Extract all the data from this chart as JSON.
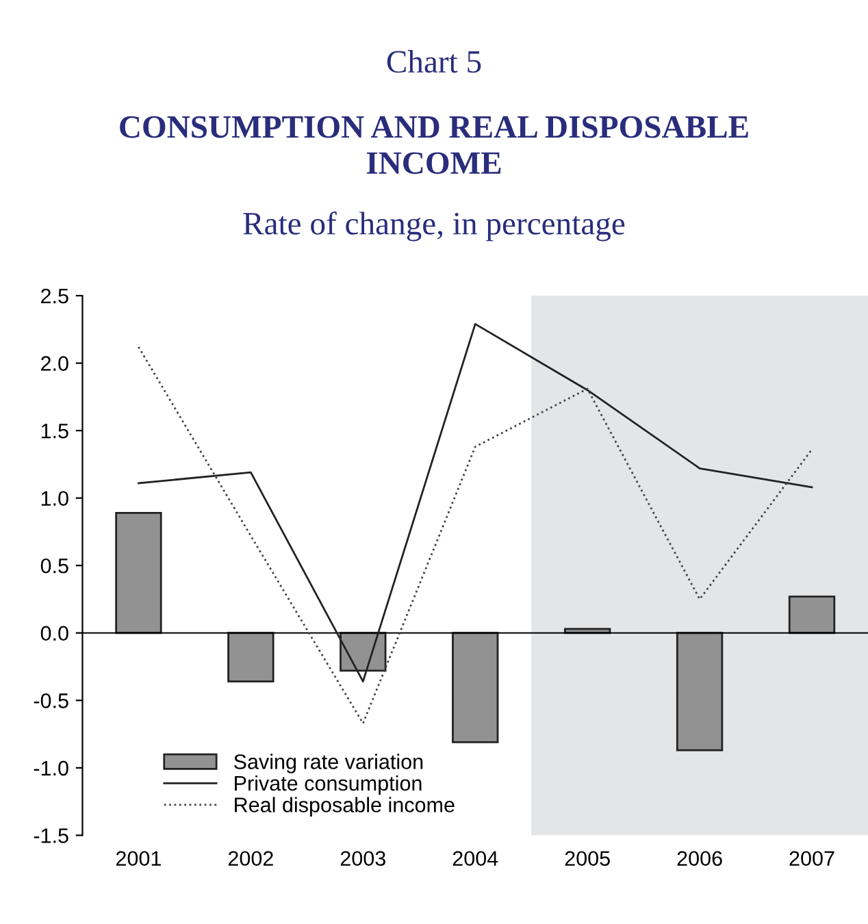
{
  "chart_data": {
    "type": "bar",
    "title": "Chart 5\nCONSUMPTION AND REAL DISPOSABLE\nINCOME",
    "subtitle": "Rate of change, in percentage",
    "x": [
      2001,
      2002,
      2003,
      2004,
      2005,
      2006,
      2007
    ],
    "series": [
      {
        "name": "Saving rate variation",
        "color": "#929292",
        "values": [
          0.89,
          -0.36,
          -0.28,
          -0.81,
          0.03,
          -0.87,
          0.27
        ]
      },
      {
        "name": "Private consumption",
        "type": "line",
        "line_style": "solid",
        "color": "#222222",
        "values": [
          1.11,
          1.19,
          -0.36,
          2.29,
          1.8,
          1.22,
          1.08
        ]
      },
      {
        "name": "Real disposable income",
        "type": "line",
        "line_style": "dotted",
        "color": "#444444",
        "values": [
          2.12,
          0.72,
          -0.67,
          1.38,
          1.81,
          0.25,
          1.36
        ]
      }
    ],
    "xlim": [
      2000.5,
      2007.5
    ],
    "xticks": [
      2001,
      2002,
      2003,
      2004,
      2005,
      2006,
      2007
    ],
    "ylim": [
      -1.5,
      2.5
    ],
    "yticks": [
      {
        "value": -1.5,
        "label": "-1.5"
      },
      {
        "value": -1.0,
        "label": "-1.0"
      },
      {
        "value": -0.5,
        "label": "-0.5"
      },
      {
        "value": 0.0,
        "label": "0.0"
      },
      {
        "value": 0.5,
        "label": "0.5"
      },
      {
        "value": 1.0,
        "label": "1.0"
      },
      {
        "value": 1.5,
        "label": "1.5"
      },
      {
        "value": 2.0,
        "label": "2.0"
      },
      {
        "value": 2.5,
        "label": "2.5"
      }
    ],
    "bands": [
      {
        "axis": "x",
        "from": 2004.5,
        "to": 2007.5,
        "color": "#e4e5e7"
      }
    ],
    "legend": "bottom left"
  }
}
